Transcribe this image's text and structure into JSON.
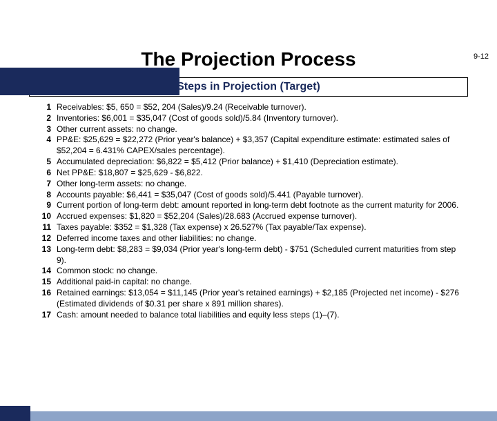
{
  "page_number": "9-12",
  "title": "The Projection Process",
  "subtitle": "Steps in Projection (Target)",
  "colors": {
    "dark_blue": "#1a2a5c",
    "light_blue": "#8da4c8",
    "background": "#ffffff",
    "text": "#000000"
  },
  "typography": {
    "title_fontsize": 28,
    "subtitle_fontsize": 16,
    "body_fontsize": 12,
    "page_num_fontsize": 11
  },
  "steps": [
    {
      "n": "1",
      "text": "Receivables: $5, 650 = $52, 204 (Sales)/9.24 (Receivable turnover)."
    },
    {
      "n": "2",
      "text": "Inventories: $6,001 = $35,047 (Cost of goods sold)/5.84 (Inventory turnover)."
    },
    {
      "n": "3",
      "text": "Other current assets: no change."
    },
    {
      "n": "4",
      "text": "PP&E: $25,629 = $22,272 (Prior year's balance) + $3,357 (Capital expenditure estimate: estimated sales of $52,204 = 6.431% CAPEX/sales percentage)."
    },
    {
      "n": "5",
      "text": "Accumulated depreciation: $6,822 = $5,412 (Prior balance) + $1,410 (Depreciation estimate)."
    },
    {
      "n": "6",
      "text": "Net PP&E: $18,807 = $25,629 - $6,822."
    },
    {
      "n": "7",
      "text": "Other long-term assets: no change."
    },
    {
      "n": "8",
      "text": "Accounts payable: $6,441 = $35,047 (Cost of goods sold)/5.441 (Payable turnover)."
    },
    {
      "n": "9",
      "text": "Current portion of long-term debt: amount reported in long-term debt footnote as the current maturity for 2006."
    },
    {
      "n": "10",
      "text": "Accrued expenses: $1,820 = $52,204 (Sales)/28.683 (Accrued expense turnover)."
    },
    {
      "n": "11",
      "text": "Taxes payable: $352 = $1,328 (Tax expense) x 26.527% (Tax payable/Tax expense)."
    },
    {
      "n": "12",
      "text": "Deferred income taxes and other liabilities: no change."
    },
    {
      "n": "13",
      "text": "Long-term debt: $8,283 = $9,034 (Prior year's long-term debt) - $751 (Scheduled current maturities from step 9)."
    },
    {
      "n": "14",
      "text": "Common stock: no change."
    },
    {
      "n": "15",
      "text": "Additional paid-in capital: no change."
    },
    {
      "n": "16",
      "text": "Retained earnings: $13,054 = $11,145 (Prior year's retained earnings) + $2,185 (Projected net income) - $276 (Estimated dividends of $0.31 per share x 891 million shares)."
    },
    {
      "n": "17",
      "text": "Cash: amount needed to balance total liabilities and equity less steps (1)–(7)."
    }
  ]
}
